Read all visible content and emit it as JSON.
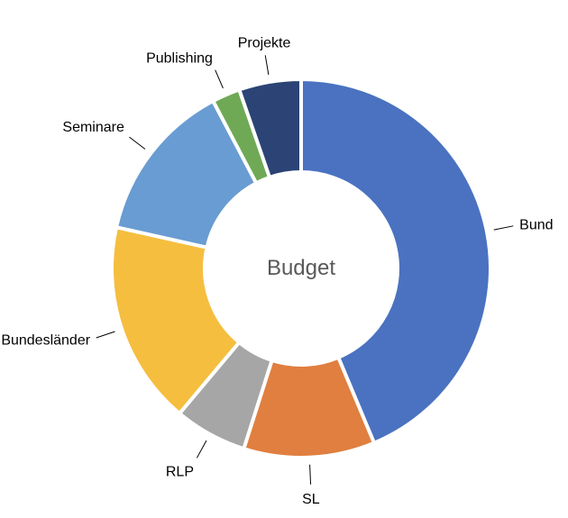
{
  "chart_data": {
    "type": "pie",
    "style": "donut",
    "center_label": "Budget",
    "slices": [
      {
        "label": "Bund",
        "value": 43.7,
        "color": "#4A72C0"
      },
      {
        "label": "SL",
        "value": 11.2,
        "color": "#E07F3F"
      },
      {
        "label": "RLP",
        "value": 6.2,
        "color": "#A6A6A6"
      },
      {
        "label": "Bundesländer",
        "value": 17.4,
        "color": "#F5BE3F"
      },
      {
        "label": "Seminare",
        "value": 13.8,
        "color": "#699CD2"
      },
      {
        "label": "Publishing",
        "value": 2.4,
        "color": "#6FA956"
      },
      {
        "label": "Projekte",
        "value": 5.3,
        "color": "#2B4475"
      }
    ],
    "start_angle_deg": 0,
    "direction": "clockwise",
    "legend": "none"
  }
}
